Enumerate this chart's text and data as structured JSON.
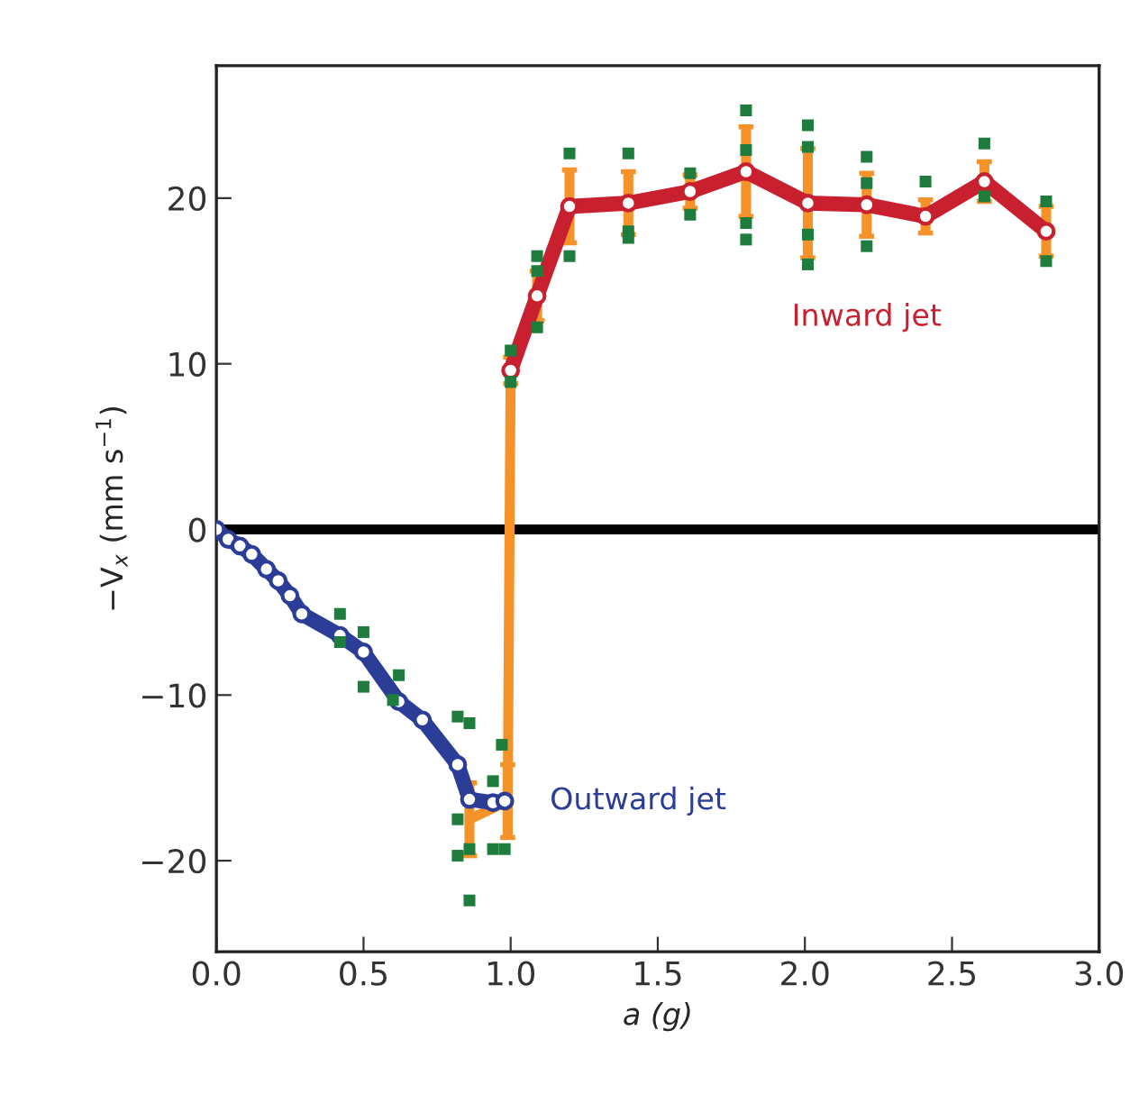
{
  "chart_data": {
    "type": "line",
    "xlabel": "a (g)",
    "ylabel": "−V$_{x}$ (mm s$^{−1}$)",
    "xlim": [
      0,
      3.0
    ],
    "ylim": [
      -25.5,
      28
    ],
    "xticks": [
      {
        "value": 0,
        "label": "0.0"
      },
      0.5,
      {
        "value": 1,
        "label": "1.0"
      },
      1.5,
      {
        "value": 2,
        "label": "2.0"
      },
      2.5,
      {
        "value": 3,
        "label": "3.0"
      }
    ],
    "yticks": [
      {
        "value": -20,
        "label": "−20"
      },
      {
        "value": -10,
        "label": "−10"
      },
      0,
      10,
      20
    ],
    "grid": false,
    "legend": false,
    "line_style": "solid",
    "ref_lines": [
      {
        "axis": "y",
        "value": 0,
        "color": "#000000"
      }
    ],
    "series": [
      {
        "type": "scatter",
        "marker": "square",
        "color": "#1e7d3c",
        "x": [
          0.42,
          0.42,
          0.5,
          0.5,
          0.62,
          0.6,
          0.82,
          0.86,
          0.82,
          0.82,
          0.86,
          0.86,
          0.94,
          0.97,
          0.94,
          0.98,
          1.0,
          1.0,
          1.09,
          1.09,
          1.09,
          1.2,
          1.2,
          1.4,
          1.4,
          1.4,
          1.61,
          1.61,
          1.8,
          1.8,
          1.8,
          1.8,
          2.01,
          2.01,
          2.01,
          2.01,
          2.21,
          2.21,
          2.21,
          2.41,
          2.61,
          2.61,
          2.82,
          2.82
        ],
        "values": [
          -5.1,
          -6.8,
          -6.2,
          -9.5,
          -8.8,
          -10.3,
          -11.3,
          -11.7,
          -17.5,
          -19.7,
          -19.3,
          -22.4,
          -15.2,
          -13.0,
          -19.3,
          -19.3,
          10.8,
          8.9,
          16.5,
          15.6,
          12.2,
          22.7,
          16.5,
          22.7,
          18.0,
          17.6,
          21.5,
          19.0,
          25.3,
          22.9,
          18.5,
          17.5,
          24.4,
          23.1,
          17.8,
          16.0,
          22.5,
          20.9,
          17.1,
          21.0,
          23.3,
          20.1,
          19.8,
          16.2
        ]
      },
      {
        "type": "line",
        "marker": "none",
        "color": "#f5922a",
        "x": [
          0.86,
          0.99,
          1.0,
          1.09,
          1.2,
          1.4,
          1.61,
          1.8,
          2.01,
          2.21,
          2.41,
          2.61,
          2.82
        ],
        "values": [
          -17.5,
          -16.4,
          9.6,
          14.1,
          19.5,
          19.7,
          20.4,
          21.6,
          19.7,
          19.6,
          18.9,
          21.0,
          18.0
        ],
        "errors": [
          2.2,
          2.2,
          0.8,
          1.5,
          2.2,
          1.9,
          1.0,
          2.7,
          3.3,
          1.9,
          1.0,
          1.2,
          1.5
        ]
      },
      {
        "name": "Outward jet",
        "marker": "circle",
        "color": "#2b3d97",
        "x": [
          0,
          0.04,
          0.08,
          0.12,
          0.17,
          0.21,
          0.25,
          0.29,
          0.42,
          0.5,
          0.62,
          0.7,
          0.82,
          0.86,
          0.94,
          0.98
        ],
        "values": [
          0,
          -0.6,
          -1.0,
          -1.5,
          -2.4,
          -3.1,
          -4.0,
          -5.1,
          -6.4,
          -7.4,
          -10.4,
          -11.5,
          -14.2,
          -16.3,
          -16.5,
          -16.4
        ]
      },
      {
        "name": "Inward jet",
        "marker": "circle",
        "color": "#c8202e",
        "x": [
          1.0,
          1.09,
          1.2,
          1.4,
          1.61,
          1.8,
          2.01,
          2.21,
          2.41,
          2.61,
          2.82
        ],
        "values": [
          9.6,
          14.1,
          19.5,
          19.7,
          20.4,
          21.6,
          19.7,
          19.6,
          18.9,
          21.0,
          18.0
        ]
      }
    ]
  }
}
